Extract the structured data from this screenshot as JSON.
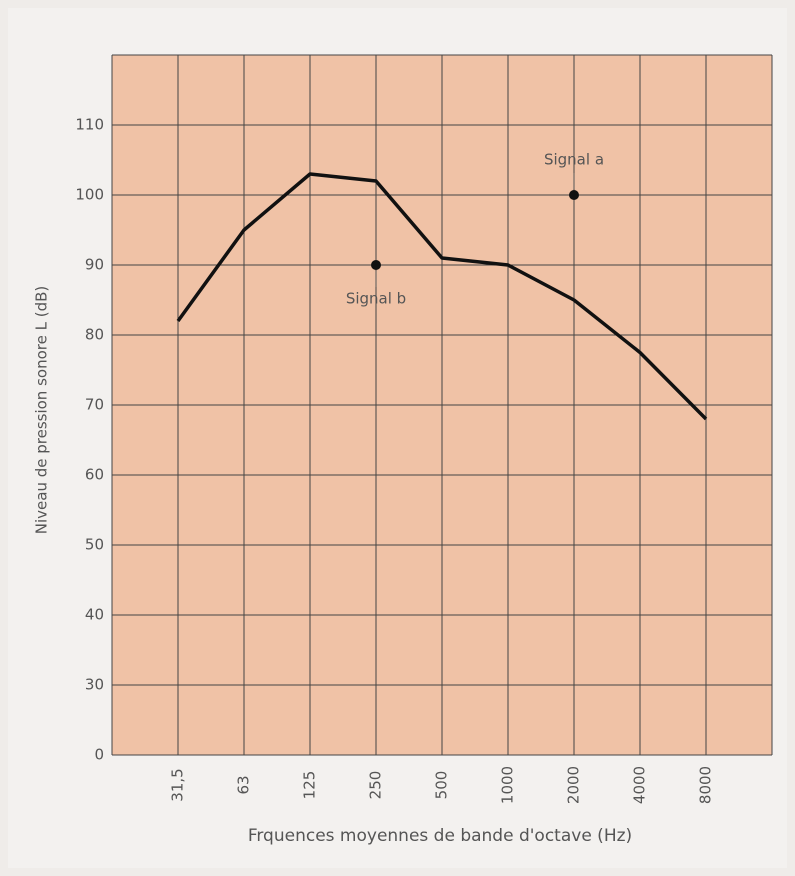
{
  "chart_data": {
    "type": "line",
    "x_label": "Frquences moyennes de bande d'octave (Hz)",
    "y_label": "Niveau de pression sonore L (dB)",
    "categories": [
      "31,5",
      "63",
      "125",
      "250",
      "500",
      "1000",
      "2000",
      "4000",
      "8000"
    ],
    "values": [
      82,
      95,
      103,
      102,
      91,
      90,
      85,
      77.5,
      68
    ],
    "color": "#111111",
    "ylim": [
      20,
      120
    ],
    "yticks": [
      {
        "value": 20,
        "label": "0"
      },
      30,
      40,
      50,
      60,
      70,
      80,
      90,
      100,
      110
    ],
    "grid": true,
    "annotations": [
      {
        "text": "Signal a",
        "x": "2000",
        "y": 100
      },
      {
        "text": "Signal b",
        "x": "250",
        "y": 90
      }
    ]
  }
}
